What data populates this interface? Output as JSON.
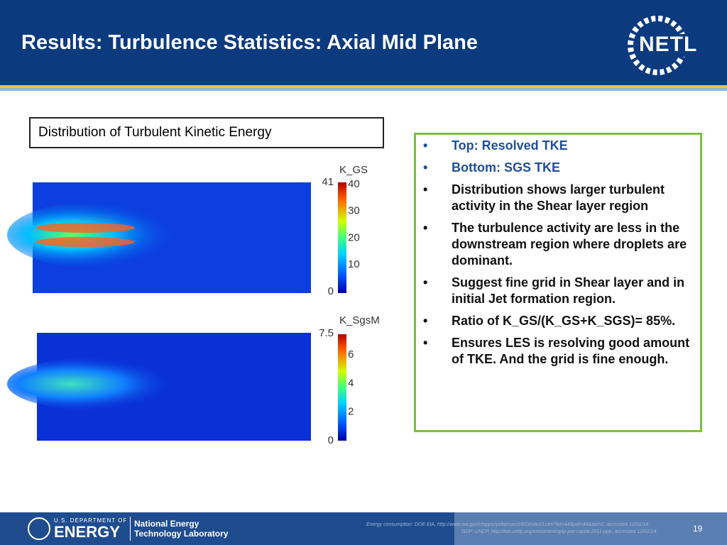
{
  "header": {
    "title": "Results:  Turbulence Statistics: Axial Mid Plane",
    "logo": "NETL"
  },
  "caption": "Distribution of Turbulent Kinetic Energy",
  "plots": [
    {
      "label": "K_GS",
      "max_label": "41",
      "ticks": [
        "40",
        "30",
        "20",
        "10",
        "0"
      ]
    },
    {
      "label": "K_SgsM",
      "max_label": "7.5",
      "ticks": [
        "6",
        "4",
        "2",
        "0"
      ]
    }
  ],
  "bullets": [
    "Top: Resolved TKE",
    "Bottom: SGS TKE",
    "Distribution shows larger turbulent activity in the Shear layer region",
    "The turbulence activity are less in the downstream region where droplets are dominant.",
    "Suggest fine grid in Shear layer and in initial Jet formation region.",
    "Ratio of K_GS/(K_GS+K_SGS)= 85%.",
    " Ensures LES is resolving good amount of TKE. And the grid is fine enough."
  ],
  "footer": {
    "department": "U.S. DEPARTMENT OF",
    "agency": "ENERGY",
    "lab_line1": "National Energy",
    "lab_line2": "Technology Laboratory",
    "source1": "Energy consumption: DOE EIA, http://www.eia.gov/cfapps/ipdbproject/IEDIndex3.cfm?tid=44&pid=44&aid=2, accessed 12/01/14",
    "source2": "GDP: UNDP, http://hdr.undp.org/en/content/gdp-per-capita-2011-ppp, accessed 12/01/14",
    "page": "19"
  }
}
